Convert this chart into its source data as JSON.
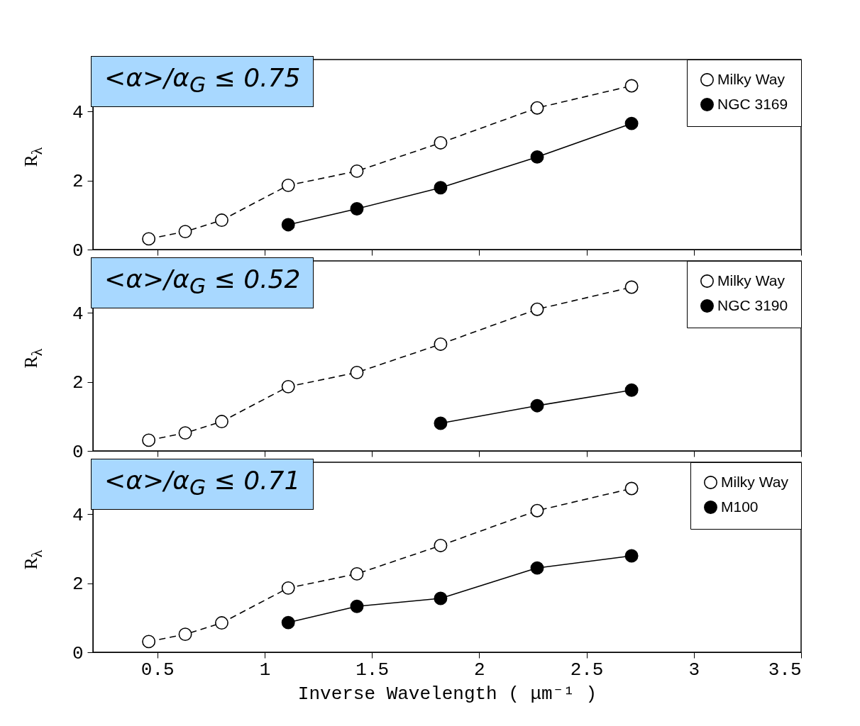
{
  "chart_data": [
    {
      "type": "line",
      "annotations": [
        "<α>/α$_{G}$ ≤ 0.75"
      ],
      "ylabel": "R$_{λ}$",
      "xlim": [
        0.2,
        3.5
      ],
      "ylim": [
        0,
        5.5
      ],
      "xticks": [
        0.5,
        1,
        1.5,
        2,
        2.5,
        3,
        3.5
      ],
      "yticks": [
        0,
        2,
        4
      ],
      "tick_labels": "y",
      "legend": "top right",
      "marker": "circle",
      "grid": false,
      "series": [
        {
          "name": "Milky Way",
          "color": "#000000",
          "line_style": "dashed",
          "x": [
            0.46,
            0.63,
            0.8,
            1.11,
            1.43,
            1.82,
            2.27,
            2.71
          ],
          "values": [
            0.31,
            0.52,
            0.85,
            1.86,
            2.27,
            3.09,
            4.1,
            4.74
          ]
        },
        {
          "name": "NGC 3169",
          "color": "#000000",
          "line_style": "solid",
          "x": [
            1.11,
            1.43,
            1.82,
            2.27,
            2.71
          ],
          "values": [
            0.72,
            1.18,
            1.79,
            2.68,
            3.65
          ]
        }
      ]
    },
    {
      "type": "line",
      "annotations": [
        "<α>/α$_{G}$ ≤ 0.52"
      ],
      "ylabel": "R$_{λ}$",
      "xlim": [
        0.2,
        3.5
      ],
      "ylim": [
        0,
        5.5
      ],
      "xticks": [
        0.5,
        1,
        1.5,
        2,
        2.5,
        3,
        3.5
      ],
      "yticks": [
        0,
        2,
        4
      ],
      "tick_labels": "y",
      "legend": "top right",
      "marker": "circle",
      "grid": false,
      "series": [
        {
          "name": "Milky Way",
          "color": "#000000",
          "line_style": "dashed",
          "x": [
            0.46,
            0.63,
            0.8,
            1.11,
            1.43,
            1.82,
            2.27,
            2.71
          ],
          "values": [
            0.31,
            0.52,
            0.85,
            1.86,
            2.27,
            3.09,
            4.1,
            4.74
          ]
        },
        {
          "name": "NGC 3190",
          "color": "#000000",
          "line_style": "solid",
          "x": [
            1.82,
            2.27,
            2.71
          ],
          "values": [
            0.8,
            1.31,
            1.76
          ]
        }
      ]
    },
    {
      "type": "line",
      "annotations": [
        "<α>/α$_{G}$ ≤ 0.71"
      ],
      "ylabel": "R$_{λ}$",
      "xlabel": "Inverse Wavelength ( μm⁻¹ )",
      "xlim": [
        0.2,
        3.5
      ],
      "ylim": [
        0,
        5.5
      ],
      "xticks": [
        0.5,
        1,
        1.5,
        2,
        2.5,
        3,
        3.5
      ],
      "yticks": [
        0,
        2,
        4
      ],
      "legend": "top right",
      "marker": "circle",
      "grid": false,
      "series": [
        {
          "name": "Milky Way",
          "color": "#000000",
          "line_style": "dashed",
          "x": [
            0.46,
            0.63,
            0.8,
            1.11,
            1.43,
            1.82,
            2.27,
            2.71
          ],
          "values": [
            0.31,
            0.52,
            0.85,
            1.86,
            2.27,
            3.09,
            4.1,
            4.74
          ]
        },
        {
          "name": "M100",
          "color": "#000000",
          "line_style": "solid",
          "x": [
            1.11,
            1.43,
            1.82,
            2.27,
            2.71
          ],
          "values": [
            0.86,
            1.33,
            1.56,
            2.44,
            2.79
          ]
        }
      ]
    }
  ]
}
